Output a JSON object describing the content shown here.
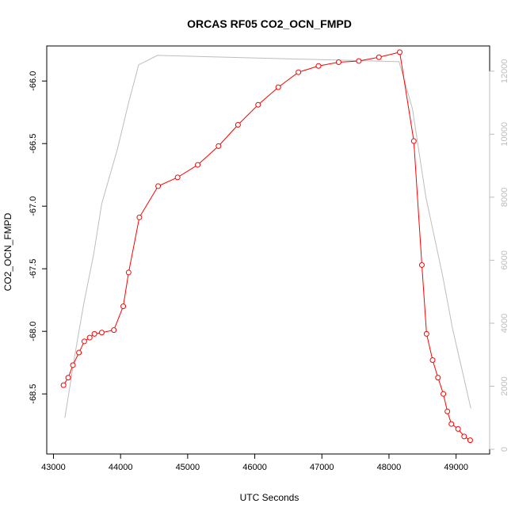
{
  "chart_data": {
    "type": "line",
    "title": "ORCAS RF05 CO2_OCN_FMPD",
    "xlabel": "UTC Seconds",
    "ylabel": "CO2_OCN_FMPD",
    "xlim": [
      42900,
      49500
    ],
    "ylim": [
      -68.98,
      -65.72
    ],
    "y2lim": [
      -150,
      12800
    ],
    "xticks": [
      43000,
      44000,
      45000,
      46000,
      47000,
      48000,
      49000
    ],
    "yticks": [
      -68.5,
      -68.0,
      -67.5,
      -67.0,
      -66.5,
      -66.0
    ],
    "y2ticks": [
      0,
      2000,
      4000,
      6000,
      8000,
      10000,
      12000
    ],
    "grid": false,
    "series": [
      {
        "color": "#ff0000",
        "axis": "left",
        "marker": "open-circle",
        "points": [
          [
            43150,
            -68.43
          ],
          [
            43220,
            -68.37
          ],
          [
            43290,
            -68.27
          ],
          [
            43380,
            -68.17
          ],
          [
            43460,
            -68.08
          ],
          [
            43540,
            -68.05
          ],
          [
            43610,
            -68.02
          ],
          [
            43720,
            -68.01
          ],
          [
            43900,
            -67.99
          ],
          [
            44040,
            -67.8
          ],
          [
            44120,
            -67.53
          ],
          [
            44280,
            -67.09
          ],
          [
            44560,
            -66.84
          ],
          [
            44850,
            -66.77
          ],
          [
            45150,
            -66.67
          ],
          [
            45460,
            -66.52
          ],
          [
            45750,
            -66.35
          ],
          [
            46050,
            -66.19
          ],
          [
            46350,
            -66.05
          ],
          [
            46650,
            -65.93
          ],
          [
            46950,
            -65.88
          ],
          [
            47250,
            -65.85
          ],
          [
            47550,
            -65.84
          ],
          [
            47850,
            -65.81
          ],
          [
            48160,
            -65.77
          ],
          [
            48370,
            -66.48
          ],
          [
            48490,
            -67.47
          ],
          [
            48560,
            -68.02
          ],
          [
            48650,
            -68.23
          ],
          [
            48730,
            -68.37
          ],
          [
            48810,
            -68.5
          ],
          [
            48870,
            -68.64
          ],
          [
            48930,
            -68.74
          ],
          [
            49030,
            -68.78
          ],
          [
            49120,
            -68.84
          ],
          [
            49210,
            -68.87
          ]
        ]
      },
      {
        "color": "#bdbdbd",
        "axis": "right",
        "marker": "none",
        "points": [
          [
            43170,
            1000
          ],
          [
            43320,
            3000
          ],
          [
            43450,
            4600
          ],
          [
            43600,
            6200
          ],
          [
            43720,
            7800
          ],
          [
            43950,
            9500
          ],
          [
            44120,
            11000
          ],
          [
            44270,
            12200
          ],
          [
            44550,
            12500
          ],
          [
            48150,
            12300
          ],
          [
            48350,
            10800
          ],
          [
            48550,
            8000
          ],
          [
            48800,
            5500
          ],
          [
            48950,
            3800
          ],
          [
            49220,
            1300
          ]
        ]
      }
    ]
  }
}
